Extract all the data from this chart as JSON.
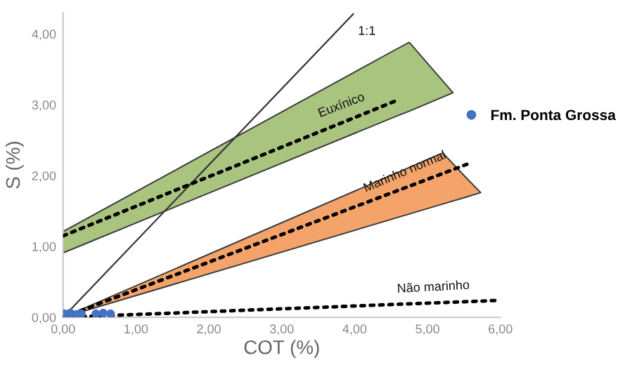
{
  "chart_data": {
    "type": "line",
    "xlabel": "COT (%)",
    "ylabel": "S (%)",
    "xlim": [
      0,
      6
    ],
    "ylim": [
      0,
      4.3
    ],
    "xticks": [
      {
        "value": 0,
        "label": "0,00"
      },
      {
        "value": 1,
        "label": "1,00"
      },
      {
        "value": 2,
        "label": "2,00"
      },
      {
        "value": 3,
        "label": "3,00"
      },
      {
        "value": 4,
        "label": "4,00"
      },
      {
        "value": 5,
        "label": "5,00"
      },
      {
        "value": 6,
        "label": "6,00"
      }
    ],
    "yticks": [
      {
        "value": 0,
        "label": "0,00"
      },
      {
        "value": 1,
        "label": "1,00"
      },
      {
        "value": 2,
        "label": "2,00"
      },
      {
        "value": 3,
        "label": "3,00"
      },
      {
        "value": 4,
        "label": "4,00"
      }
    ],
    "grid": false,
    "legend": "right",
    "series": [
      {
        "color": "#333333",
        "line_style": "solid",
        "x": [
          0,
          3.98
        ],
        "values": [
          0,
          4.28
        ]
      },
      {
        "color": "#000000",
        "colors": [
          "#a9c47f",
          "#a9c47f",
          "#a9c47f",
          "#a9c47f"
        ],
        "line_style": "dotted",
        "x": [
          0,
          4.6,
          4.75,
          5.35
        ],
        "values": [
          1.15,
          3.07,
          null,
          null
        ],
        "lower": [
          0.91,
          2.85,
          2.91,
          3.17
        ],
        "upper": [
          1.21,
          3.8,
          3.88,
          3.17
        ]
      },
      {
        "color": "#000000",
        "colors": [
          "#f4a46a",
          "#f4a46a",
          "#f4a46a",
          "#f4a46a"
        ],
        "line_style": "dotted",
        "x": [
          0,
          5.21,
          5.54,
          5.73
        ],
        "values": [
          0,
          2.03,
          2.16,
          null
        ],
        "lower": [
          0,
          1.6,
          1.7,
          1.76
        ],
        "upper": [
          0,
          2.32,
          1.96,
          1.76
        ]
      },
      {
        "color": "#000000",
        "line_style": "dotted",
        "x": [
          0,
          6
        ],
        "values": [
          0,
          0.24
        ]
      },
      {
        "type": "scatter",
        "name": "Fm. Ponta Grossa",
        "color": "#4472c4",
        "marker": "circle",
        "x": [
          0.02,
          0.1,
          0.18,
          0.25,
          0.45,
          0.55,
          0.65
        ],
        "values": [
          0.05,
          0.06,
          0.04,
          0.05,
          0.05,
          0.06,
          0.05
        ]
      }
    ],
    "annotations": [
      {
        "text": "1:1",
        "x": 3.98,
        "y": 4.28
      },
      {
        "text": "Euxínico",
        "x": 3.82,
        "y": 2.74
      },
      {
        "text": "Marinho normal",
        "x": 4.69,
        "y": 1.83
      },
      {
        "text": "Não marinho",
        "x": 5.08,
        "y": 0.2
      }
    ]
  }
}
